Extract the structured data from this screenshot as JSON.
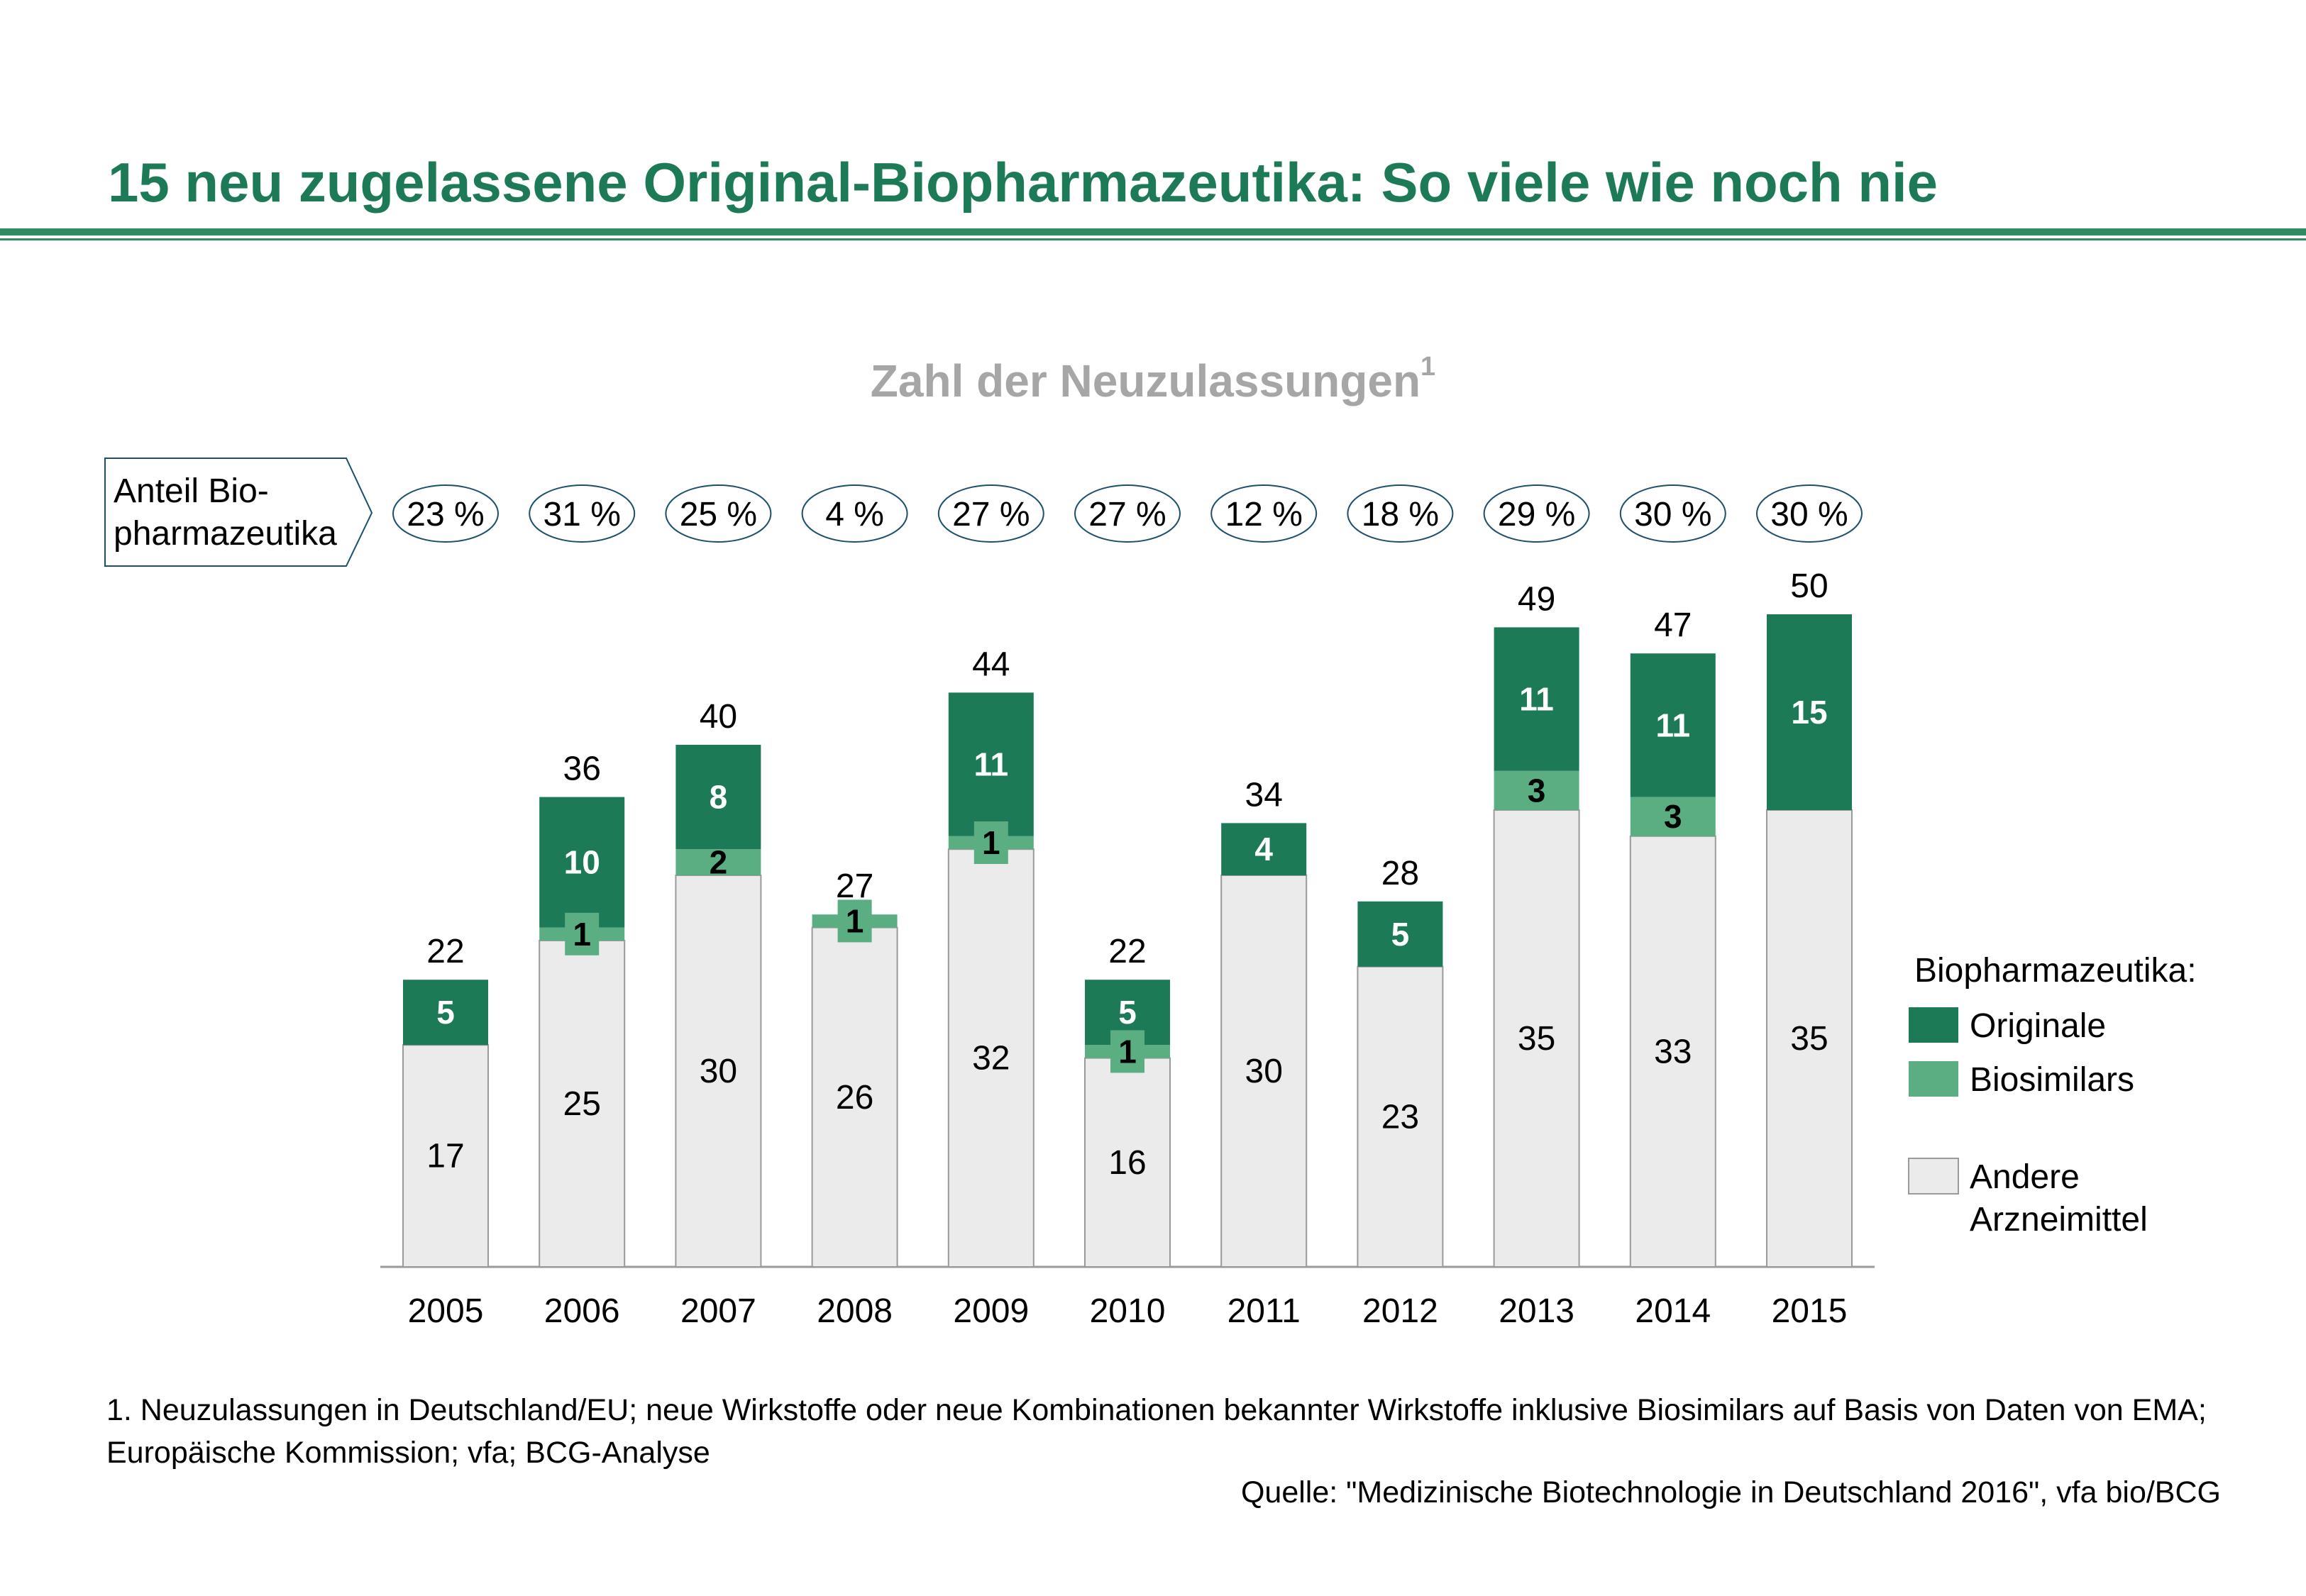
{
  "page": {
    "title": "15 neu zugelassene Original-Biopharmazeutika: So viele wie noch nie",
    "footnote": "1. Neuzulassungen in Deutschland/EU; neue Wirkstoffe oder neue Kombinationen bekannter Wirkstoffe inklusive Biosimilars auf Basis von Daten von EMA; Europäische Kommission; vfa; BCG-Analyse",
    "source": "Quelle: \"Medizinische Biotechnologie in Deutschland 2016\", vfa bio/BCG"
  },
  "chart_data": {
    "type": "bar",
    "stacked": true,
    "title": "Zahl der Neuzulassungen",
    "title_superscript": "1",
    "categories": [
      "2005",
      "2006",
      "2007",
      "2008",
      "2009",
      "2010",
      "2011",
      "2012",
      "2013",
      "2014",
      "2015"
    ],
    "series": [
      {
        "name": "Andere Arzneimittel",
        "values": [
          17,
          25,
          30,
          26,
          32,
          16,
          30,
          23,
          35,
          33,
          35
        ],
        "color": "#ebebeb"
      },
      {
        "name": "Biosimilars",
        "values": [
          0,
          1,
          2,
          1,
          1,
          1,
          0,
          0,
          3,
          3,
          0
        ],
        "color": "#5aae82"
      },
      {
        "name": "Originale",
        "values": [
          5,
          10,
          8,
          0,
          11,
          5,
          4,
          5,
          11,
          11,
          15
        ],
        "color": "#1c7a56"
      }
    ],
    "totals": [
      22,
      36,
      40,
      27,
      44,
      22,
      34,
      28,
      49,
      47,
      50
    ],
    "share_label": "Anteil Bio-pharmazeutika",
    "share_label_lines": [
      "Anteil Bio-",
      "pharmazeutika"
    ],
    "share": [
      "23 %",
      "31 %",
      "25 %",
      "4 %",
      "27 %",
      "27 %",
      "12 %",
      "18 %",
      "29 %",
      "30 %",
      "30 %"
    ],
    "legend": {
      "title": "Biopharmazeutika:",
      "items": [
        {
          "label_lines": [
            "Originale"
          ],
          "color": "#1c7a56"
        },
        {
          "label_lines": [
            "Biosimilars"
          ],
          "color": "#5aae82"
        },
        {
          "label_lines": [
            "Andere",
            "Arzneimittel"
          ],
          "color": "#ebebeb"
        }
      ],
      "placement": "right"
    },
    "ylim": [
      0,
      50
    ],
    "grid": false
  }
}
